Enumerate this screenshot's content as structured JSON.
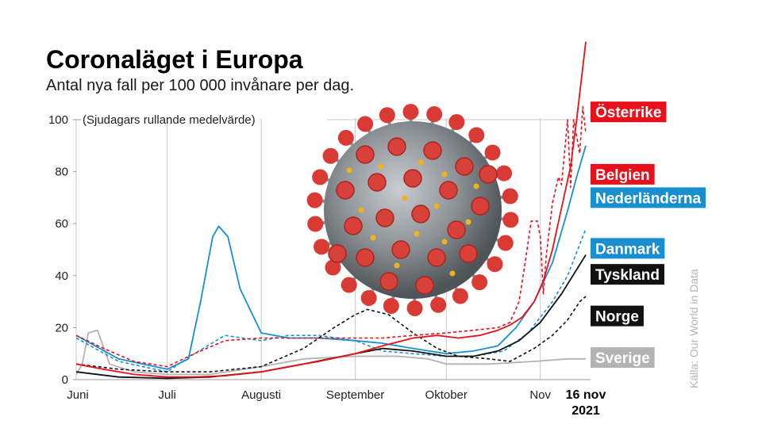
{
  "chart_data": {
    "type": "line",
    "title": "Coronaläget i Europa",
    "subtitle": "Antal nya fall per 100 000 invånare per dag.",
    "note": "(Sjudagars rullande medelvärde)",
    "source": "Källa: Our World in Data",
    "ylim": [
      0,
      100
    ],
    "yticks": [
      0,
      20,
      40,
      60,
      80,
      100
    ],
    "xlim": [
      "2021-06-01",
      "2021-11-16"
    ],
    "xticks": [
      {
        "date": "2021-06-01",
        "label": "Juni"
      },
      {
        "date": "2021-07-01",
        "label": "Juli"
      },
      {
        "date": "2021-08-01",
        "label": "Augusti"
      },
      {
        "date": "2021-09-01",
        "label": "September"
      },
      {
        "date": "2021-10-01",
        "label": "Oktober"
      },
      {
        "date": "2021-11-01",
        "label": "Nov"
      }
    ],
    "end_label": {
      "date": "2021-11-16",
      "line1": "16 nov",
      "line2": "2021"
    },
    "grid": "vertical",
    "series": [
      {
        "name": "Österrike",
        "color": "#e8101a",
        "style": "solid",
        "points": [
          [
            "2021-06-01",
            6
          ],
          [
            "2021-06-10",
            4
          ],
          [
            "2021-06-20",
            2
          ],
          [
            "2021-07-01",
            1
          ],
          [
            "2021-07-10",
            1
          ],
          [
            "2021-07-20",
            1.5
          ],
          [
            "2021-08-01",
            3
          ],
          [
            "2021-08-10",
            5
          ],
          [
            "2021-08-20",
            7
          ],
          [
            "2021-09-01",
            10
          ],
          [
            "2021-09-10",
            13
          ],
          [
            "2021-09-20",
            16
          ],
          [
            "2021-09-28",
            17
          ],
          [
            "2021-10-05",
            16
          ],
          [
            "2021-10-12",
            17
          ],
          [
            "2021-10-18",
            19
          ],
          [
            "2021-10-22",
            21
          ],
          [
            "2021-10-26",
            24
          ],
          [
            "2021-10-30",
            30
          ],
          [
            "2021-11-02",
            38
          ],
          [
            "2021-11-05",
            50
          ],
          [
            "2021-11-08",
            66
          ],
          [
            "2021-11-11",
            82
          ],
          [
            "2021-11-13",
            100
          ],
          [
            "2021-11-16",
            130
          ]
        ]
      },
      {
        "name": "Belgien",
        "color": "#e8101a",
        "style": "dashed",
        "points": [
          [
            "2021-06-01",
            17
          ],
          [
            "2021-06-10",
            12
          ],
          [
            "2021-06-20",
            7
          ],
          [
            "2021-07-01",
            5
          ],
          [
            "2021-07-10",
            10
          ],
          [
            "2021-07-20",
            15
          ],
          [
            "2021-08-01",
            16
          ],
          [
            "2021-08-10",
            16
          ],
          [
            "2021-08-20",
            16
          ],
          [
            "2021-09-01",
            16
          ],
          [
            "2021-09-10",
            16
          ],
          [
            "2021-09-20",
            17
          ],
          [
            "2021-10-01",
            18
          ],
          [
            "2021-10-10",
            19
          ],
          [
            "2021-10-18",
            20
          ],
          [
            "2021-10-22",
            22
          ],
          [
            "2021-10-25",
            30
          ],
          [
            "2021-10-27",
            45
          ],
          [
            "2021-10-29",
            61
          ],
          [
            "2021-10-31",
            61
          ],
          [
            "2021-11-01",
            55
          ],
          [
            "2021-11-02",
            33
          ],
          [
            "2021-11-03",
            48
          ],
          [
            "2021-11-05",
            68
          ],
          [
            "2021-11-07",
            78
          ],
          [
            "2021-11-08",
            75
          ],
          [
            "2021-11-10",
            100
          ],
          [
            "2021-11-11",
            74
          ],
          [
            "2021-11-12",
            100
          ],
          [
            "2021-11-14",
            87
          ],
          [
            "2021-11-15",
            105
          ],
          [
            "2021-11-16",
            95
          ]
        ]
      },
      {
        "name": "Nederländerna",
        "color": "#1a8fd0",
        "style": "solid",
        "points": [
          [
            "2021-06-01",
            17
          ],
          [
            "2021-06-15",
            8
          ],
          [
            "2021-07-01",
            4
          ],
          [
            "2021-07-08",
            8
          ],
          [
            "2021-07-12",
            30
          ],
          [
            "2021-07-16",
            55
          ],
          [
            "2021-07-18",
            59
          ],
          [
            "2021-07-21",
            55
          ],
          [
            "2021-07-25",
            35
          ],
          [
            "2021-08-01",
            18
          ],
          [
            "2021-08-10",
            16
          ],
          [
            "2021-08-20",
            16
          ],
          [
            "2021-09-01",
            15
          ],
          [
            "2021-09-10",
            14
          ],
          [
            "2021-09-20",
            12
          ],
          [
            "2021-10-01",
            10
          ],
          [
            "2021-10-10",
            11
          ],
          [
            "2021-10-18",
            13
          ],
          [
            "2021-10-24",
            20
          ],
          [
            "2021-10-30",
            30
          ],
          [
            "2021-11-05",
            45
          ],
          [
            "2021-11-10",
            65
          ],
          [
            "2021-11-13",
            78
          ],
          [
            "2021-11-16",
            90
          ]
        ]
      },
      {
        "name": "Danmark",
        "color": "#1a8fd0",
        "style": "dashed",
        "points": [
          [
            "2021-06-01",
            16
          ],
          [
            "2021-06-15",
            7
          ],
          [
            "2021-07-01",
            3
          ],
          [
            "2021-07-10",
            10
          ],
          [
            "2021-07-20",
            17
          ],
          [
            "2021-08-01",
            15
          ],
          [
            "2021-08-10",
            17
          ],
          [
            "2021-08-20",
            17
          ],
          [
            "2021-09-01",
            15
          ],
          [
            "2021-09-10",
            11
          ],
          [
            "2021-09-20",
            10
          ],
          [
            "2021-10-01",
            9
          ],
          [
            "2021-10-10",
            9
          ],
          [
            "2021-10-20",
            11
          ],
          [
            "2021-10-28",
            18
          ],
          [
            "2021-11-05",
            30
          ],
          [
            "2021-11-10",
            40
          ],
          [
            "2021-11-16",
            58
          ]
        ]
      },
      {
        "name": "Tyskland",
        "color": "#111111",
        "style": "solid",
        "points": [
          [
            "2021-06-01",
            3
          ],
          [
            "2021-06-15",
            1
          ],
          [
            "2021-07-01",
            0.5
          ],
          [
            "2021-07-15",
            1
          ],
          [
            "2021-08-01",
            3
          ],
          [
            "2021-08-15",
            6
          ],
          [
            "2021-09-01",
            10
          ],
          [
            "2021-09-10",
            12
          ],
          [
            "2021-09-20",
            11
          ],
          [
            "2021-10-01",
            9
          ],
          [
            "2021-10-10",
            9
          ],
          [
            "2021-10-18",
            11
          ],
          [
            "2021-10-25",
            15
          ],
          [
            "2021-11-01",
            22
          ],
          [
            "2021-11-08",
            33
          ],
          [
            "2021-11-16",
            48
          ]
        ]
      },
      {
        "name": "Norge",
        "color": "#111111",
        "style": "dashed",
        "points": [
          [
            "2021-06-01",
            6
          ],
          [
            "2021-06-15",
            4
          ],
          [
            "2021-07-01",
            3
          ],
          [
            "2021-07-15",
            3
          ],
          [
            "2021-08-01",
            5
          ],
          [
            "2021-08-15",
            12
          ],
          [
            "2021-08-25",
            20
          ],
          [
            "2021-09-01",
            25
          ],
          [
            "2021-09-05",
            27
          ],
          [
            "2021-09-12",
            25
          ],
          [
            "2021-09-20",
            18
          ],
          [
            "2021-09-28",
            12
          ],
          [
            "2021-10-05",
            9
          ],
          [
            "2021-10-15",
            8
          ],
          [
            "2021-10-22",
            7
          ],
          [
            "2021-10-30",
            12
          ],
          [
            "2021-11-05",
            17
          ],
          [
            "2021-11-10",
            23
          ],
          [
            "2021-11-14",
            30
          ],
          [
            "2021-11-16",
            32
          ]
        ]
      },
      {
        "name": "Sverige",
        "color": "#b3b3b3",
        "style": "solid",
        "points": [
          [
            "2021-06-01",
            2
          ],
          [
            "2021-06-03",
            6
          ],
          [
            "2021-06-05",
            18
          ],
          [
            "2021-06-08",
            19
          ],
          [
            "2021-06-12",
            6
          ],
          [
            "2021-06-20",
            3
          ],
          [
            "2021-07-01",
            2
          ],
          [
            "2021-07-15",
            2
          ],
          [
            "2021-08-01",
            5
          ],
          [
            "2021-08-15",
            8
          ],
          [
            "2021-09-01",
            9
          ],
          [
            "2021-09-15",
            9
          ],
          [
            "2021-09-25",
            8
          ],
          [
            "2021-10-01",
            6
          ],
          [
            "2021-10-15",
            6
          ],
          [
            "2021-10-30",
            7
          ],
          [
            "2021-11-10",
            8
          ],
          [
            "2021-11-16",
            8
          ]
        ]
      }
    ],
    "legend": [
      {
        "name": "Österrike",
        "color": "#e8101a",
        "value": 103
      },
      {
        "name": "Belgien",
        "color": "#e8101a",
        "value": 79
      },
      {
        "name": "Nederländerna",
        "color": "#1a8fd0",
        "value": 70
      },
      {
        "name": "Danmark",
        "color": "#1a8fd0",
        "value": 50.5
      },
      {
        "name": "Tyskland",
        "color": "#111111",
        "value": 40.5
      },
      {
        "name": "Norge",
        "color": "#111111",
        "value": 24.5
      },
      {
        "name": "Sverige",
        "color": "#b3b3b3",
        "value": 8.5
      }
    ]
  }
}
